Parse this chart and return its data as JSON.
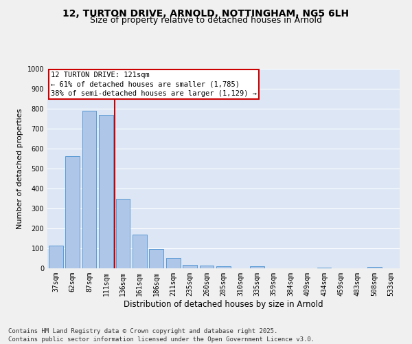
{
  "title_line1": "12, TURTON DRIVE, ARNOLD, NOTTINGHAM, NG5 6LH",
  "title_line2": "Size of property relative to detached houses in Arnold",
  "xlabel": "Distribution of detached houses by size in Arnold",
  "ylabel": "Number of detached properties",
  "categories": [
    "37sqm",
    "62sqm",
    "87sqm",
    "111sqm",
    "136sqm",
    "161sqm",
    "186sqm",
    "211sqm",
    "235sqm",
    "260sqm",
    "285sqm",
    "310sqm",
    "335sqm",
    "359sqm",
    "384sqm",
    "409sqm",
    "434sqm",
    "459sqm",
    "483sqm",
    "508sqm",
    "533sqm"
  ],
  "values": [
    113,
    563,
    790,
    770,
    350,
    168,
    98,
    53,
    18,
    13,
    12,
    0,
    10,
    0,
    0,
    0,
    5,
    0,
    0,
    8,
    0
  ],
  "bar_color": "#aec6e8",
  "bar_edge_color": "#5b9bd5",
  "vline_x": 3.5,
  "vline_color": "#cc0000",
  "annotation_text": "12 TURTON DRIVE: 121sqm\n← 61% of detached houses are smaller (1,785)\n38% of semi-detached houses are larger (1,129) →",
  "annotation_box_color": "#cc0000",
  "ylim": [
    0,
    1000
  ],
  "yticks": [
    0,
    100,
    200,
    300,
    400,
    500,
    600,
    700,
    800,
    900,
    1000
  ],
  "bg_color": "#dce6f5",
  "grid_color": "#ffffff",
  "fig_bg_color": "#f0f0f0",
  "footer_text": "Contains HM Land Registry data © Crown copyright and database right 2025.\nContains public sector information licensed under the Open Government Licence v3.0.",
  "title_fontsize": 10,
  "subtitle_fontsize": 9,
  "annotation_fontsize": 7.5,
  "footer_fontsize": 6.5,
  "ylabel_fontsize": 8,
  "xlabel_fontsize": 8.5,
  "tick_fontsize": 7
}
